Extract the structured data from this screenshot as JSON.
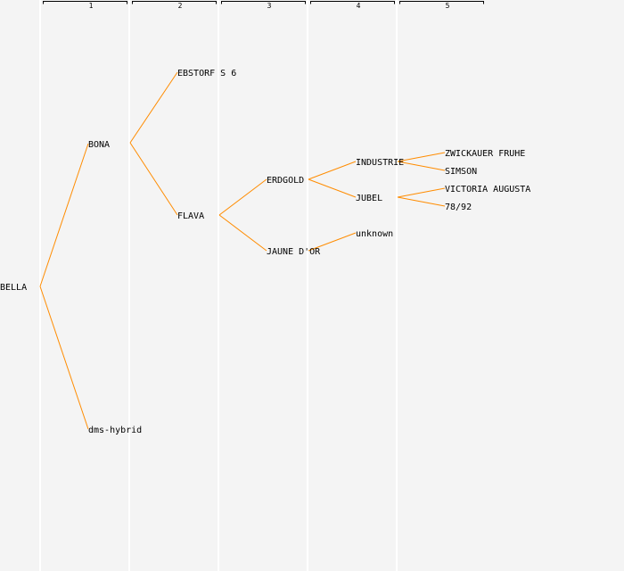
{
  "colors": {
    "background": "#f4f4f4",
    "column_divider": "#ffffff",
    "bracket": "#000000",
    "connector": "#ff8c00",
    "text": "#000000"
  },
  "generations": [
    "1",
    "2",
    "3",
    "4",
    "5"
  ],
  "pedigree": {
    "root": "BELLA",
    "gen1": {
      "sire": "BONA",
      "dam": "dms-hybrid"
    },
    "gen2": {
      "bona_sire": "EBSTORF S 6",
      "bona_dam": "FLAVA"
    },
    "gen3": {
      "flava_sire": "ERDGOLD",
      "flava_dam": "JAUNE D'OR"
    },
    "gen4": {
      "erdgold_sire": "INDUSTRIE",
      "erdgold_dam": "JUBEL",
      "jaune_parent": "unknown"
    },
    "gen5": {
      "industrie_sire": "ZWICKAUER FRUHE",
      "industrie_dam": "SIMSON",
      "jubel_sire": "VICTORIA AUGUSTA",
      "jubel_dam": "78/92"
    }
  }
}
